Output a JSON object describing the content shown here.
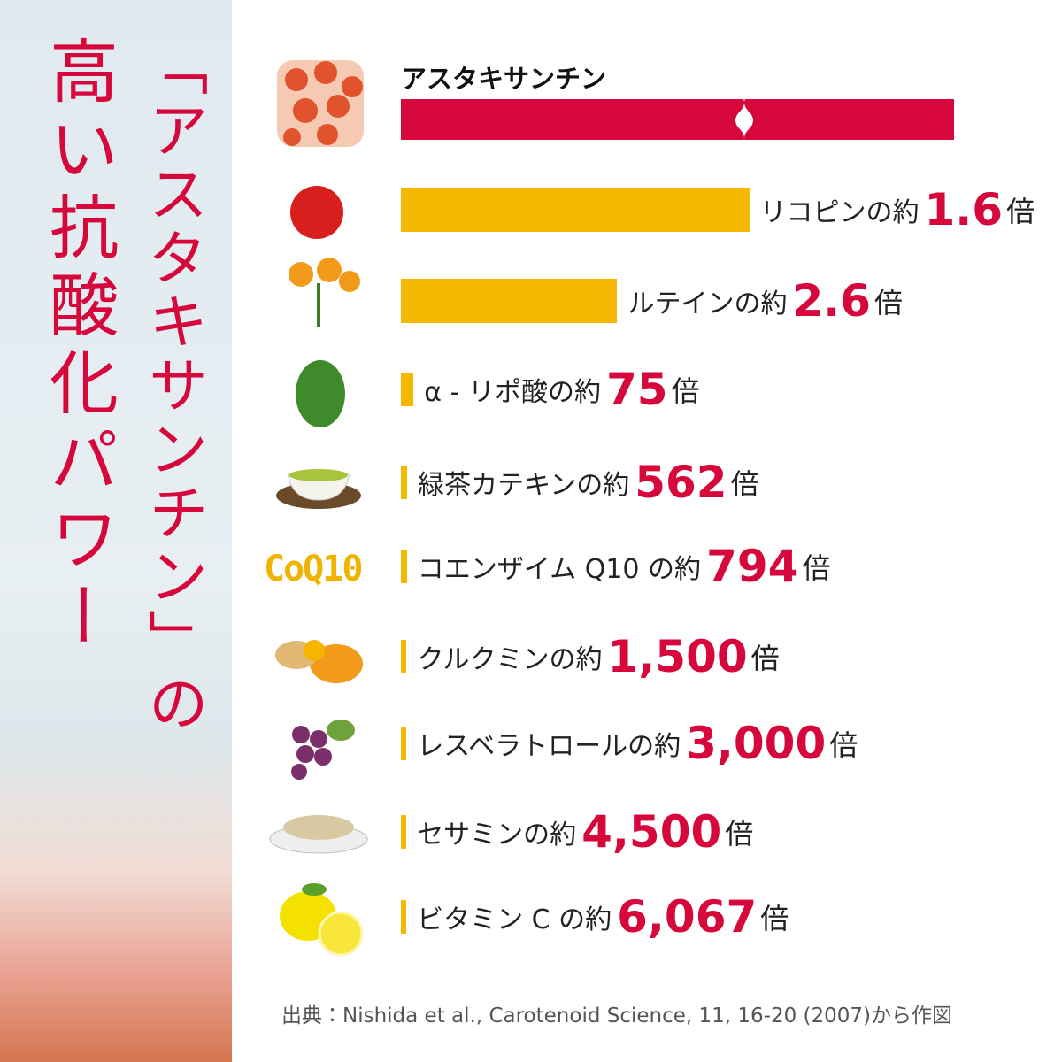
{
  "title": {
    "line1": "「アスタキサンチン」の",
    "line2": "高い抗酸化パワー"
  },
  "top_item": "アスタキサンチン",
  "icon_text": "CoQ10",
  "rows": [
    {
      "label": "リコピンの約",
      "value": 1.6,
      "unit": "倍"
    },
    {
      "label": "ルテインの約",
      "value": 2.6,
      "unit": "倍"
    },
    {
      "label": "α - リポ酸の約",
      "value": 75,
      "unit": "倍"
    },
    {
      "label": "緑茶カテキンの約",
      "value": 562,
      "unit": "倍"
    },
    {
      "label": "コエンザイム Q10 の約",
      "value": 794,
      "unit": "倍"
    },
    {
      "label": "クルクミンの約",
      "value": 1500,
      "value_label": "1,500",
      "unit": "倍"
    },
    {
      "label": "レスベラトロールの約",
      "value": 3000,
      "value_label": "3,000",
      "unit": "倍"
    },
    {
      "label": "セサミンの約",
      "value": 4500,
      "value_label": "4,500",
      "unit": "倍"
    },
    {
      "label": "ビタミン C の約",
      "value": 6067,
      "value_label": "6,067",
      "unit": "倍"
    }
  ],
  "source": "出典：Nishida et al., Carotenoid Science, 11, 16-20 (2007)から作図"
}
